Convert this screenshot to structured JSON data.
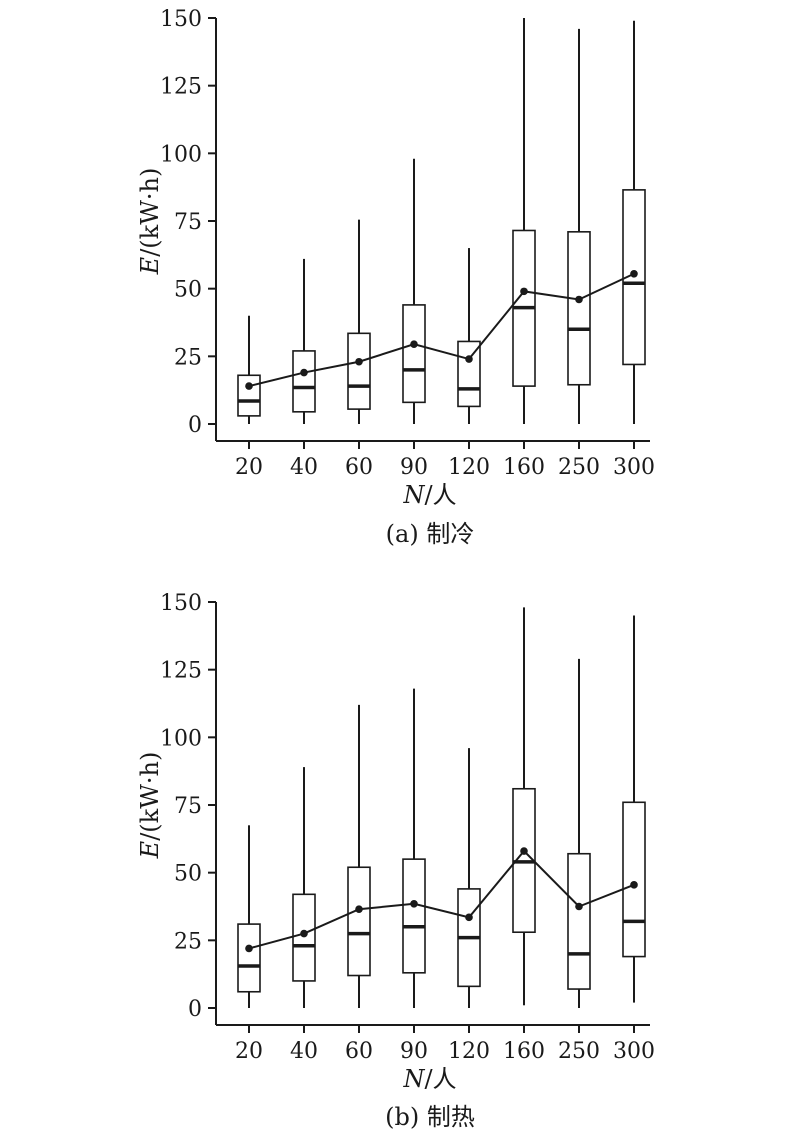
{
  "chart_data": [
    {
      "type": "box",
      "caption": "(a) 制冷",
      "ylabel": "E/(kW·h)",
      "xlabel": "N/人",
      "categories": [
        "20",
        "40",
        "60",
        "90",
        "120",
        "160",
        "250",
        "300"
      ],
      "ylim": [
        0,
        150
      ],
      "yticks": [
        0,
        25,
        50,
        75,
        100,
        125,
        150
      ],
      "boxes": [
        {
          "min": 0,
          "q1": 3,
          "median": 8.5,
          "q3": 18,
          "max": 40,
          "mean": 14
        },
        {
          "min": 0,
          "q1": 4.5,
          "median": 13.5,
          "q3": 27,
          "max": 61,
          "mean": 19
        },
        {
          "min": 0,
          "q1": 5.5,
          "median": 14,
          "q3": 33.5,
          "max": 75.5,
          "mean": 23
        },
        {
          "min": 0,
          "q1": 8,
          "median": 20,
          "q3": 44,
          "max": 98,
          "mean": 29.5
        },
        {
          "min": 0,
          "q1": 6.5,
          "median": 13,
          "q3": 30.5,
          "max": 65,
          "mean": 24
        },
        {
          "min": 0,
          "q1": 14,
          "median": 43,
          "q3": 71.5,
          "max": 150,
          "mean": 49
        },
        {
          "min": 0,
          "q1": 14.5,
          "median": 35,
          "q3": 71,
          "max": 146,
          "mean": 46
        },
        {
          "min": 0,
          "q1": 22,
          "median": 52,
          "q3": 86.5,
          "max": 149,
          "mean": 55.5
        }
      ],
      "grid": false
    },
    {
      "type": "box",
      "caption": "(b) 制热",
      "ylabel": "E/(kW·h)",
      "xlabel": "N/人",
      "categories": [
        "20",
        "40",
        "60",
        "90",
        "120",
        "160",
        "250",
        "300"
      ],
      "ylim": [
        0,
        150
      ],
      "yticks": [
        0,
        25,
        50,
        75,
        100,
        125,
        150
      ],
      "boxes": [
        {
          "min": 0,
          "q1": 6,
          "median": 15.5,
          "q3": 31,
          "max": 67.5,
          "mean": 22
        },
        {
          "min": 0,
          "q1": 10,
          "median": 23,
          "q3": 42,
          "max": 89,
          "mean": 27.5
        },
        {
          "min": 0,
          "q1": 12,
          "median": 27.5,
          "q3": 52,
          "max": 112,
          "mean": 36.5
        },
        {
          "min": 0,
          "q1": 13,
          "median": 30,
          "q3": 55,
          "max": 118,
          "mean": 38.5
        },
        {
          "min": 0,
          "q1": 8,
          "median": 26,
          "q3": 44,
          "max": 96,
          "mean": 33.5
        },
        {
          "min": 1,
          "q1": 28,
          "median": 54,
          "q3": 81,
          "max": 148,
          "mean": 58
        },
        {
          "min": 0,
          "q1": 7,
          "median": 20,
          "q3": 57,
          "max": 129,
          "mean": 37.5
        },
        {
          "min": 2,
          "q1": 19,
          "median": 32,
          "q3": 76,
          "max": 145,
          "mean": 45.5
        }
      ],
      "grid": false
    }
  ],
  "colors": {
    "ink": "#1a1a1a",
    "box_fill": "#ffffff"
  }
}
